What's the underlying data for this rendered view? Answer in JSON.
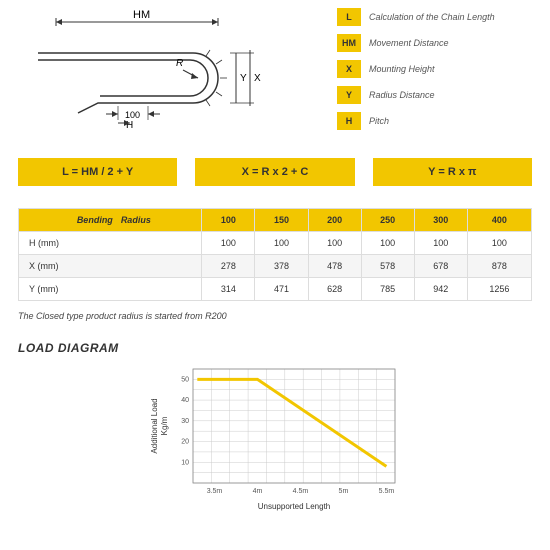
{
  "legend": [
    {
      "key": "L",
      "text": "Calculation of the Chain Length"
    },
    {
      "key": "HM",
      "text": "Movement Distance"
    },
    {
      "key": "X",
      "text": "Mounting Height"
    },
    {
      "key": "Y",
      "text": "Radius Distance"
    },
    {
      "key": "H",
      "text": "Pitch"
    }
  ],
  "diagram": {
    "hm": "HM",
    "r": "R",
    "x": "X",
    "y": "Y",
    "h": "H",
    "w100": "100"
  },
  "formulas": {
    "f1": "L = HM / 2 + Y",
    "f2": "X = R x 2 + C",
    "f3": "Y = R x π"
  },
  "table": {
    "bend": "Bending",
    "rad": "Radius",
    "cols": [
      "100",
      "150",
      "200",
      "250",
      "300",
      "400"
    ],
    "rows": [
      {
        "label": "H (mm)",
        "vals": [
          "100",
          "100",
          "100",
          "100",
          "100",
          "100"
        ],
        "alt": false
      },
      {
        "label": "X (mm)",
        "vals": [
          "278",
          "378",
          "478",
          "578",
          "678",
          "878"
        ],
        "alt": true
      },
      {
        "label": "Y (mm)",
        "vals": [
          "314",
          "471",
          "628",
          "785",
          "942",
          "1256"
        ],
        "alt": false
      }
    ]
  },
  "note": "The Closed type product radius is started from R200",
  "loadTitle": "LOAD DIAGRAM",
  "chart": {
    "type": "line",
    "xlabel": "Unsupported Length",
    "ylabel": "Additional Load Kg/m",
    "xticks": [
      "3.5m",
      "4m",
      "4.5m",
      "5m",
      "5.5m"
    ],
    "yticks": [
      "10",
      "20",
      "30",
      "40",
      "50"
    ],
    "ylim": [
      0,
      55
    ],
    "line_color": "#f2c600",
    "line_width": 3,
    "grid_color": "#cccccc",
    "bg": "#ffffff",
    "points": [
      [
        3.3,
        50
      ],
      [
        4.0,
        50
      ],
      [
        5.5,
        8
      ]
    ]
  }
}
